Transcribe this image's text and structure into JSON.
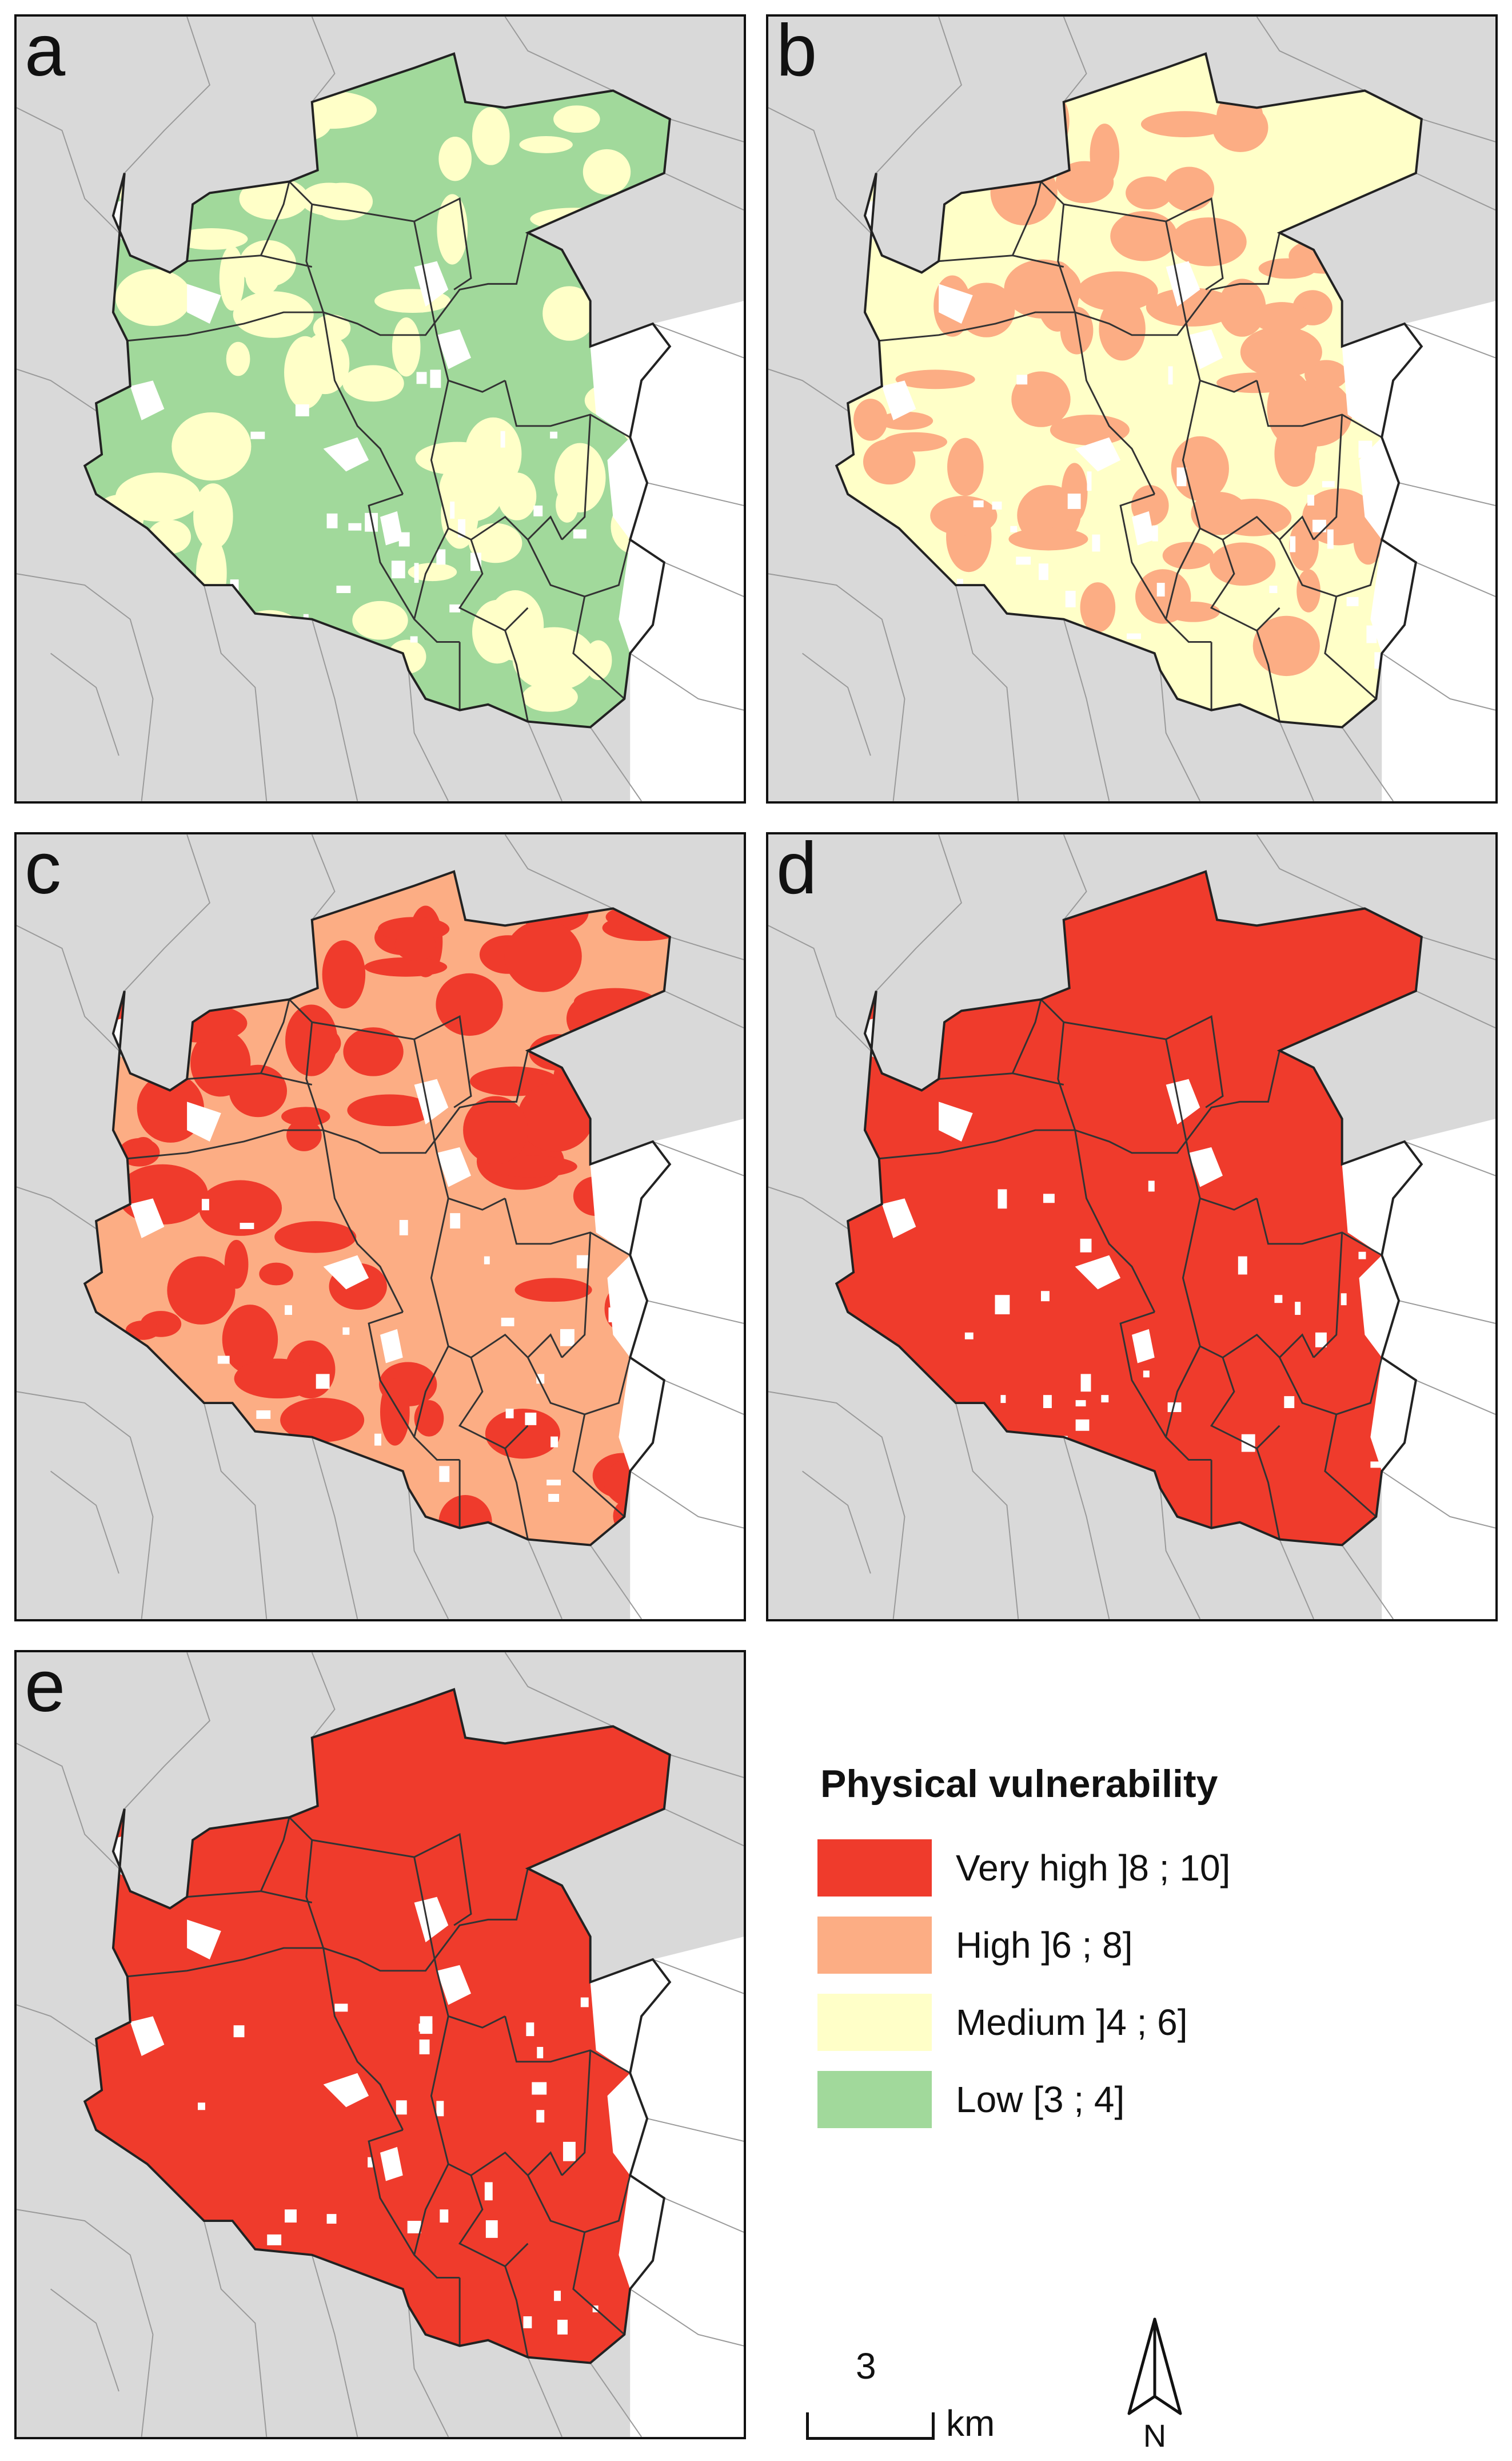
{
  "colors": {
    "very_high": "#ef3b2c",
    "high": "#fcad84",
    "medium": "#ffffc8",
    "low": "#a1d99b",
    "background_land": "#d9d9d9",
    "sea_gap": "#ffffff"
  },
  "panels": [
    {
      "letter": "a",
      "base_class": "low",
      "patch_class": "medium"
    },
    {
      "letter": "b",
      "base_class": "medium",
      "patch_class": "high"
    },
    {
      "letter": "c",
      "base_class": "high",
      "patch_class": "very_high"
    },
    {
      "letter": "d",
      "base_class": "very_high",
      "patch_class": "very_high"
    },
    {
      "letter": "e",
      "base_class": "very_high",
      "patch_class": "very_high"
    }
  ],
  "legend": {
    "title": "Physical vulnerability",
    "items": [
      {
        "label": "Very high ]8 ; 10]",
        "color": "#ef3b2c"
      },
      {
        "label": "High ]6 ; 8]",
        "color": "#fcad84"
      },
      {
        "label": "Medium ]4 ; 6]",
        "color": "#ffffc8"
      },
      {
        "label": "Low [3 ; 4]",
        "color": "#a1d99b"
      }
    ]
  },
  "scalebar": {
    "value": "3",
    "unit": "km"
  },
  "north_arrow": {
    "label": "N",
    "icon": "north-arrow-icon"
  }
}
